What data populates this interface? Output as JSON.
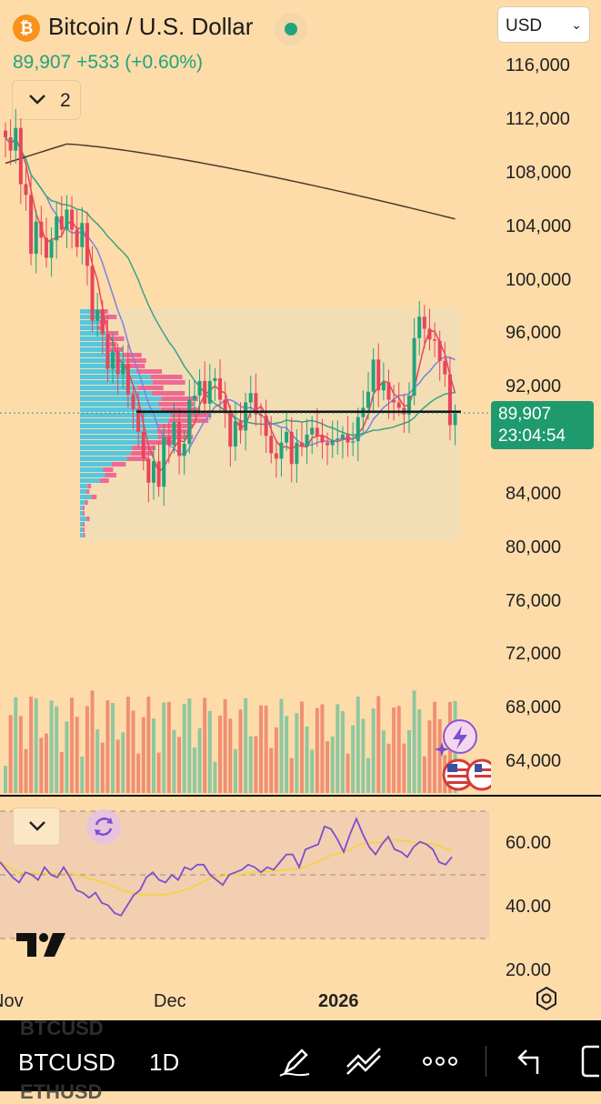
{
  "header": {
    "title": "Bitcoin / U.S. Dollar",
    "logo_glyph": "₿",
    "price": "89,907",
    "change": "+533",
    "change_pct": "(+0.60%)",
    "currency": "USD",
    "indicator_count": "2"
  },
  "colors": {
    "background": "#fddcaa",
    "up": "#22a37d",
    "down": "#e8455c",
    "rsi": "#7a4fd0",
    "rsi_ma": "#f5d33a"
  },
  "price_axis": {
    "labels": [
      "116,000",
      "112,000",
      "108,000",
      "104,000",
      "100,000",
      "96,000",
      "92,000",
      "84,000",
      "80,000",
      "76,000",
      "72,000",
      "68,000",
      "64,000"
    ]
  },
  "current_price_badge": {
    "price": "89,907",
    "countdown": "23:04:54"
  },
  "rsi_axis": {
    "labels": [
      "60.00",
      "40.00",
      "20.00"
    ]
  },
  "time_axis": {
    "labels": [
      "Nov",
      "Dec",
      "2026"
    ]
  },
  "toolbar": {
    "symbol": "BTCUSD",
    "interval": "1D",
    "ghost_above": "BTCUSD",
    "ghost_below": "ETHUSD"
  },
  "icons": [
    "bitcoin-logo",
    "market-open-dot",
    "chevron-down-icon",
    "refresh-icon",
    "gear-icon",
    "pen-icon",
    "drawing-tools-icon",
    "more-icon",
    "undo-icon",
    "tradingview-logo",
    "flash-icon",
    "us-flag-icon"
  ],
  "chart_data": {
    "type": "candlestick",
    "interval": "1D",
    "symbol": "BTCUSD",
    "y_range": [
      80000,
      116000
    ],
    "ohlc_close": [
      110500,
      109500,
      111200,
      107000,
      106200,
      101800,
      104200,
      103000,
      101500,
      102800,
      104600,
      103600,
      105100,
      103600,
      102300,
      104100,
      100900,
      96800,
      97600,
      95800,
      93200,
      94500,
      92800,
      93600,
      91300,
      90200,
      88500,
      86500,
      84700,
      86300,
      84400,
      88100,
      87500,
      89200,
      86700,
      87600,
      90900,
      91200,
      92300,
      90600,
      92300,
      92500,
      90900,
      89900,
      87400,
      89300,
      88600,
      90700,
      91400,
      89800,
      89700,
      88200,
      86900,
      86500,
      87700,
      88500,
      86100,
      87700,
      87400,
      88300,
      88800,
      88200,
      87700,
      87500,
      87900,
      88000,
      88300,
      87700,
      87800,
      89600,
      90300,
      91500,
      93900,
      91600,
      92200,
      90900,
      90700,
      90300,
      89800,
      91200,
      95500,
      97100,
      96200,
      95400,
      95300,
      93800,
      92800,
      89000,
      89907
    ],
    "moving_averages": [
      {
        "color": "#e8455c",
        "note": "short MA"
      },
      {
        "color": "#7c83e0",
        "note": "medium MA"
      },
      {
        "color": "#3aa383",
        "note": "long MA"
      },
      {
        "color": "#4b3a2b",
        "note": "200 MA"
      }
    ],
    "horizontal_line": 90000,
    "rsi": {
      "levels": [
        70,
        50,
        30
      ],
      "range": [
        20,
        70
      ]
    }
  }
}
